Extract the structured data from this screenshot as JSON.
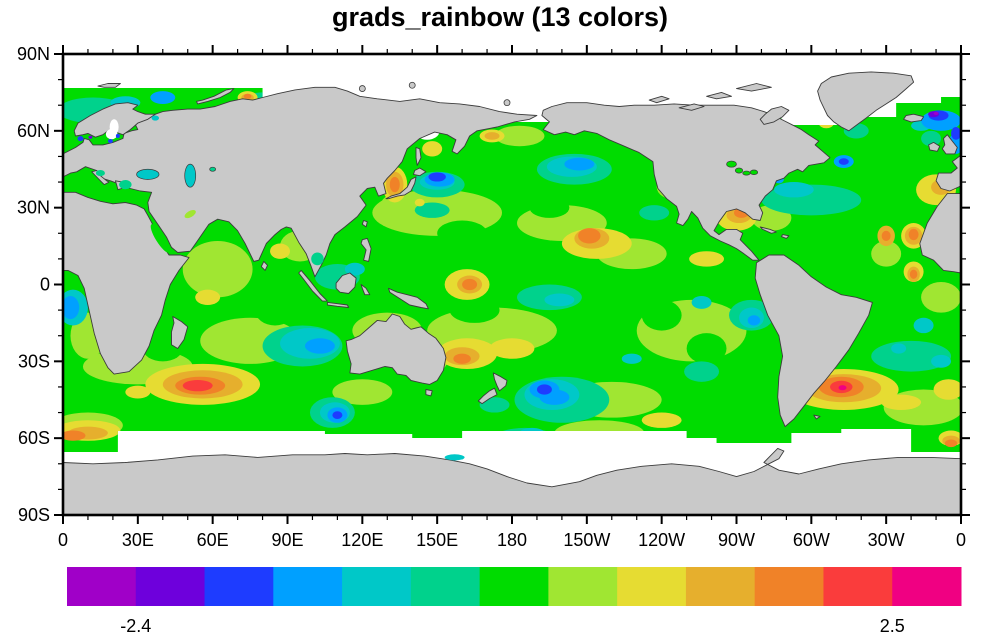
{
  "title": "grads_rainbow (13 colors)",
  "map": {
    "land_color": "#c9c9c9",
    "coast_color": "#3c3c3c",
    "missing_color": "#ffffff",
    "frame_color": "#000000",
    "x_axis": {
      "tick_labels": [
        "0",
        "30E",
        "60E",
        "90E",
        "120E",
        "150E",
        "180",
        "150W",
        "120W",
        "90W",
        "60W",
        "30W",
        "0"
      ],
      "major_step_deg": 30,
      "minor_step_deg": 10
    },
    "y_axis": {
      "tick_labels": [
        "90N",
        "60N",
        "30N",
        "0",
        "30S",
        "60S",
        "90S"
      ],
      "major_step_deg": 30,
      "minor_step_deg": 10
    }
  },
  "colorbar": {
    "colors": [
      "#a000c8",
      "#6e00dc",
      "#1e3cff",
      "#00a0ff",
      "#00c8c8",
      "#00d28c",
      "#00dc00",
      "#a0e632",
      "#e6dc32",
      "#e6af2d",
      "#f08228",
      "#fa3c3c",
      "#f00082"
    ],
    "labels": [
      {
        "text": "-2.4",
        "boundary_index": 1
      },
      {
        "text": "2.5",
        "boundary_index": 12
      }
    ]
  },
  "chart_data": {
    "type": "heatmap",
    "title": "grads_rainbow (13 colors)",
    "subtitle_note": "filled-contour anomaly field on cylindrical-equidistant world map, lon 0E..360E left-to-right, lat 90N..90S top-to-bottom",
    "lon_range": [
      0,
      360
    ],
    "lat_range": [
      -90,
      90
    ],
    "base_level": 6,
    "levels_colors": [
      "#a000c8",
      "#6e00dc",
      "#1e3cff",
      "#00a0ff",
      "#00c8c8",
      "#00d28c",
      "#00dc00",
      "#a0e632",
      "#e6dc32",
      "#e6af2d",
      "#f08228",
      "#fa3c3c",
      "#f00082"
    ],
    "labelled_boundaries": {
      "first": -2.4,
      "last": 2.5
    },
    "feature_fields": [
      "lon",
      "lat",
      "rx_deg",
      "ry_deg",
      "level"
    ],
    "features": [
      [
        150,
        28,
        26,
        9,
        7
      ],
      [
        200,
        24,
        18,
        7,
        7
      ],
      [
        228,
        12,
        14,
        6,
        7
      ],
      [
        252,
        -18,
        22,
        12,
        7
      ],
      [
        172,
        -18,
        26,
        9,
        7
      ],
      [
        130,
        -18,
        14,
        7,
        7
      ],
      [
        75,
        -22,
        20,
        9,
        7
      ],
      [
        30,
        -32,
        22,
        7,
        7
      ],
      [
        62,
        6,
        14,
        11,
        7
      ],
      [
        345,
        -48,
        16,
        7,
        7
      ],
      [
        220,
        -45,
        20,
        7,
        7
      ],
      [
        355,
        25,
        6,
        9,
        7
      ],
      [
        10,
        -55,
        14,
        5,
        7
      ],
      [
        95,
        15,
        8,
        6,
        7
      ],
      [
        135,
        30,
        8,
        6,
        7
      ],
      [
        284,
        26,
        8,
        5,
        7
      ],
      [
        330,
        12,
        6,
        5,
        7
      ],
      [
        183,
        58,
        10,
        4,
        7
      ],
      [
        146,
        -30,
        8,
        5,
        7
      ],
      [
        246,
        38,
        8,
        5,
        7
      ],
      [
        352,
        -5,
        8,
        6,
        7
      ],
      [
        10,
        -20,
        7,
        9,
        7
      ],
      [
        215,
        -58,
        18,
        5,
        7
      ],
      [
        120,
        -42,
        12,
        5,
        7
      ],
      [
        260,
        55,
        7,
        3,
        7
      ],
      [
        160,
        20,
        10,
        5,
        6
      ],
      [
        195,
        30,
        8,
        4,
        6
      ],
      [
        215,
        -25,
        8,
        5,
        6
      ],
      [
        240,
        -12,
        8,
        6,
        6
      ],
      [
        258,
        -25,
        8,
        6,
        6
      ],
      [
        165,
        -10,
        10,
        5,
        6
      ],
      [
        85,
        -10,
        8,
        6,
        6
      ],
      [
        40,
        -25,
        8,
        5,
        6
      ],
      [
        300,
        0,
        14,
        8,
        6
      ],
      [
        330,
        -10,
        8,
        8,
        6
      ],
      [
        200,
        10,
        12,
        5,
        6
      ],
      [
        150,
        -45,
        10,
        4,
        6
      ],
      [
        230,
        48,
        8,
        4,
        6
      ],
      [
        310,
        20,
        8,
        5,
        6
      ],
      [
        175,
        40,
        8,
        4,
        6
      ],
      [
        12,
        68,
        14,
        5,
        5
      ],
      [
        148,
        29,
        7,
        3,
        5
      ],
      [
        205,
        45,
        15,
        6,
        5
      ],
      [
        195,
        -5,
        13,
        5,
        5
      ],
      [
        200,
        -45,
        19,
        9,
        5
      ],
      [
        96,
        -24,
        16,
        8,
        5
      ],
      [
        108,
        -50,
        9,
        6,
        5
      ],
      [
        276,
        -12,
        9,
        6,
        5
      ],
      [
        300,
        33,
        20,
        6,
        5
      ],
      [
        340,
        -28,
        16,
        6,
        5
      ],
      [
        110,
        3,
        9,
        5,
        5
      ],
      [
        237,
        28,
        6,
        3,
        5
      ],
      [
        256,
        -34,
        7,
        4,
        5
      ],
      [
        150,
        39,
        11,
        5,
        5
      ],
      [
        318,
        60,
        5,
        3,
        5
      ],
      [
        80,
        72,
        7,
        3,
        5
      ],
      [
        185,
        -60,
        12,
        4,
        5
      ],
      [
        348,
        57,
        4,
        3,
        5
      ],
      [
        102,
        10,
        2.5,
        2,
        5
      ],
      [
        173,
        -47,
        6,
        3,
        5
      ],
      [
        25,
        71,
        6,
        2.5,
        4
      ],
      [
        150,
        40,
        7,
        3,
        4
      ],
      [
        204,
        46,
        10,
        4,
        4
      ],
      [
        199,
        -6,
        6,
        2.5,
        4
      ],
      [
        196,
        -43,
        11,
        6,
        4
      ],
      [
        99,
        -23,
        12,
        6,
        4
      ],
      [
        109,
        -50,
        6,
        4,
        4
      ],
      [
        276,
        -13,
        5,
        4,
        4
      ],
      [
        293,
        37,
        8,
        3,
        4
      ],
      [
        345,
        -16,
        4,
        3,
        4
      ],
      [
        335,
        -25,
        3,
        2,
        4
      ],
      [
        352,
        -30,
        4,
        2.5,
        4
      ],
      [
        117,
        6,
        4,
        2.5,
        4
      ],
      [
        228,
        -29,
        4,
        2,
        4
      ],
      [
        256,
        -7,
        4,
        2.5,
        4
      ],
      [
        344,
        62,
        4,
        2,
        4
      ],
      [
        4,
        -9,
        6,
        7,
        4
      ],
      [
        188,
        -58,
        5,
        2,
        4
      ],
      [
        40,
        73,
        5,
        2.5,
        3
      ],
      [
        151,
        41,
        6,
        2.8,
        3
      ],
      [
        207,
        47,
        6,
        2.5,
        3
      ],
      [
        193,
        -41,
        6,
        3.5,
        3
      ],
      [
        103,
        -24,
        6,
        3,
        3
      ],
      [
        110,
        -51,
        4,
        3,
        3
      ],
      [
        313,
        48,
        4,
        2.5,
        3
      ],
      [
        287,
        41,
        2,
        1.5,
        3
      ],
      [
        3,
        -9,
        3.5,
        4.5,
        3
      ],
      [
        352,
        64,
        8,
        4,
        3
      ],
      [
        358,
        55,
        3,
        4,
        3
      ],
      [
        277,
        -14,
        2.5,
        2,
        3
      ],
      [
        197,
        -44,
        6,
        3,
        3
      ],
      [
        150,
        42,
        3.5,
        1.8,
        2
      ],
      [
        193,
        -41,
        3,
        2,
        2
      ],
      [
        110,
        -51,
        2,
        1.5,
        2
      ],
      [
        313,
        48,
        2,
        1.3,
        2
      ],
      [
        351,
        66,
        4,
        2,
        2
      ],
      [
        358,
        59,
        2,
        2.5,
        2
      ],
      [
        349,
        66.5,
        2.2,
        1.2,
        1
      ],
      [
        350,
        66.8,
        1,
        0.6,
        0
      ],
      [
        56,
        -39,
        23,
        8,
        8
      ],
      [
        313,
        -41,
        22,
        8,
        8
      ],
      [
        214,
        16,
        14,
        6,
        8
      ],
      [
        162,
        0,
        9,
        6,
        8
      ],
      [
        270,
        26,
        8,
        5,
        8
      ],
      [
        350,
        37,
        8,
        6,
        8
      ],
      [
        341,
        19,
        5,
        5,
        8
      ],
      [
        162,
        -27,
        12,
        6,
        8
      ],
      [
        180,
        -25,
        9,
        4,
        8
      ],
      [
        10,
        -57,
        13,
        4,
        8
      ],
      [
        240,
        -53,
        8,
        3,
        8
      ],
      [
        87,
        13,
        4,
        3,
        8
      ],
      [
        58,
        -5,
        5,
        3,
        8
      ],
      [
        30,
        -42,
        5,
        2.5,
        8
      ],
      [
        356,
        -60,
        5,
        3,
        8
      ],
      [
        133,
        39,
        5,
        7,
        8
      ],
      [
        258,
        10,
        7,
        3,
        8
      ],
      [
        148,
        53,
        4,
        3,
        8
      ],
      [
        172,
        58,
        5,
        2.5,
        8
      ],
      [
        306,
        63,
        3,
        2,
        8
      ],
      [
        74,
        73,
        4,
        2.5,
        8
      ],
      [
        336,
        -46,
        8,
        3,
        8
      ],
      [
        355,
        -41,
        6,
        4,
        8
      ],
      [
        143,
        32,
        2,
        1.5,
        8
      ],
      [
        341,
        5,
        4,
        4,
        8
      ],
      [
        56,
        -39,
        16,
        5.5,
        9
      ],
      [
        313,
        -40.5,
        15,
        5.5,
        9
      ],
      [
        212,
        18,
        7,
        4,
        9
      ],
      [
        163,
        0,
        5,
        3.5,
        9
      ],
      [
        271,
        27,
        5,
        3,
        9
      ],
      [
        352,
        38,
        4,
        3,
        9
      ],
      [
        341,
        19,
        3.5,
        3.5,
        9
      ],
      [
        160,
        -28,
        7,
        3.5,
        9
      ],
      [
        10,
        -58,
        8,
        2.5,
        9
      ],
      [
        133,
        39,
        3.5,
        5,
        9
      ],
      [
        74,
        73,
        2.5,
        1.5,
        9
      ],
      [
        172,
        58,
        3,
        1.5,
        9
      ],
      [
        356,
        -61,
        3.5,
        2,
        9
      ],
      [
        330,
        19,
        3.5,
        4,
        9
      ],
      [
        341,
        4,
        2.5,
        3,
        9
      ],
      [
        55,
        -39.5,
        10,
        3.5,
        10
      ],
      [
        312,
        -40,
        9,
        4,
        10
      ],
      [
        211,
        19,
        4.5,
        3,
        10
      ],
      [
        163,
        0,
        3,
        2.2,
        10
      ],
      [
        272,
        28,
        3,
        2,
        10
      ],
      [
        341,
        19.5,
        2,
        2.2,
        10
      ],
      [
        160,
        -29,
        3.5,
        2,
        10
      ],
      [
        133,
        39,
        2,
        3,
        10
      ],
      [
        4,
        -59,
        5,
        2,
        10
      ],
      [
        356,
        -62,
        2.5,
        1.5,
        10
      ],
      [
        300,
        -39,
        3.5,
        2,
        10
      ],
      [
        74,
        73.5,
        1.5,
        1,
        10
      ],
      [
        330,
        19,
        1.8,
        2,
        10
      ],
      [
        341,
        4,
        1.5,
        1.8,
        10
      ],
      [
        54,
        -39.5,
        6,
        2.2,
        11
      ],
      [
        312,
        -40,
        4.5,
        2.4,
        11
      ],
      [
        312.5,
        -40.3,
        1.6,
        1,
        12
      ]
    ],
    "missing_masks": [
      {
        "name": "hudson-bay",
        "lon": 279,
        "lat": 57,
        "rx": 7,
        "ry": 6
      },
      {
        "name": "sea-of-okhotsk-nw",
        "lon": 146,
        "lat": 60,
        "rx": 5,
        "ry": 3.5
      }
    ],
    "post_land_masks": [
      {
        "name": "gulf-of-bothnia",
        "lon": 20.5,
        "lat": 61.5,
        "rx": 1.8,
        "ry": 3
      },
      {
        "name": "baltic-sea",
        "lon": 19.5,
        "lat": 58.7,
        "rx": 2.3,
        "ry": 2
      }
    ],
    "overlays": [
      {
        "name": "black-sea",
        "lon": 34,
        "lat": 43,
        "rx": 4.5,
        "ry": 2,
        "level": 4,
        "outline": 1
      },
      {
        "name": "caspian-sea",
        "lon": 51,
        "lat": 42.5,
        "rx": 2.2,
        "ry": 4.5,
        "level": 4,
        "outline": 1
      },
      {
        "name": "aral-sea",
        "lon": 60,
        "lat": 45,
        "rx": 1.2,
        "ry": 0.8,
        "level": 5,
        "outline": 1
      },
      {
        "name": "aegean-sea",
        "lon": 25,
        "lat": 39,
        "rx": 2.5,
        "ry": 1.8,
        "level": 5
      },
      {
        "name": "adriatic-sea",
        "lon": 15,
        "lat": 43.5,
        "rx": 1.8,
        "ry": 1.2,
        "level": 5
      },
      {
        "name": "red-sea",
        "lon": 39,
        "lat": 18,
        "rx": 1.8,
        "ry": 6.5,
        "level": 6,
        "rot": -32
      },
      {
        "name": "persian-gulf",
        "lon": 51,
        "lat": 27.5,
        "rx": 2.5,
        "ry": 1.2,
        "level": 7,
        "rot": -30
      },
      {
        "name": "great-lake-superior",
        "lon": 268,
        "lat": 47,
        "rx": 2,
        "ry": 1.2,
        "level": 6,
        "outline": 1
      },
      {
        "name": "great-lake-michigan",
        "lon": 271,
        "lat": 44.5,
        "rx": 1.5,
        "ry": 1,
        "level": 6,
        "outline": 1
      },
      {
        "name": "great-lake-erie",
        "lon": 274,
        "lat": 43.5,
        "rx": 1.5,
        "ry": 0.8,
        "level": 6,
        "outline": 1
      },
      {
        "name": "great-lake-ontario",
        "lon": 277,
        "lat": 43.8,
        "rx": 1.5,
        "ry": 0.9,
        "level": 6,
        "outline": 1
      },
      {
        "name": "white-sea",
        "lon": 37,
        "lat": 65,
        "rx": 1.5,
        "ry": 1,
        "level": 4
      },
      {
        "name": "antarctic-coast-patch",
        "lon": 157,
        "lat": -67.5,
        "rx": 4,
        "ry": 1.2,
        "level": 4
      },
      {
        "name": "gulf-of-thailand",
        "lon": 102,
        "lat": 10,
        "rx": 2.5,
        "ry": 2.5,
        "level": 5
      },
      {
        "name": "baltic-speck-1",
        "lon": 19,
        "lat": 56,
        "rx": 1,
        "ry": 0.8,
        "level": 2
      },
      {
        "name": "baltic-speck-2",
        "lon": 22,
        "lat": 58,
        "rx": 0.8,
        "ry": 0.8,
        "level": 2
      },
      {
        "name": "skagerrak-speck",
        "lon": 7,
        "lat": 57,
        "rx": 1.2,
        "ry": 1,
        "level": 2
      },
      {
        "name": "oslo-speck",
        "lon": 11,
        "lat": 57.5,
        "rx": 0.8,
        "ry": 0.6,
        "level": 1
      }
    ]
  }
}
